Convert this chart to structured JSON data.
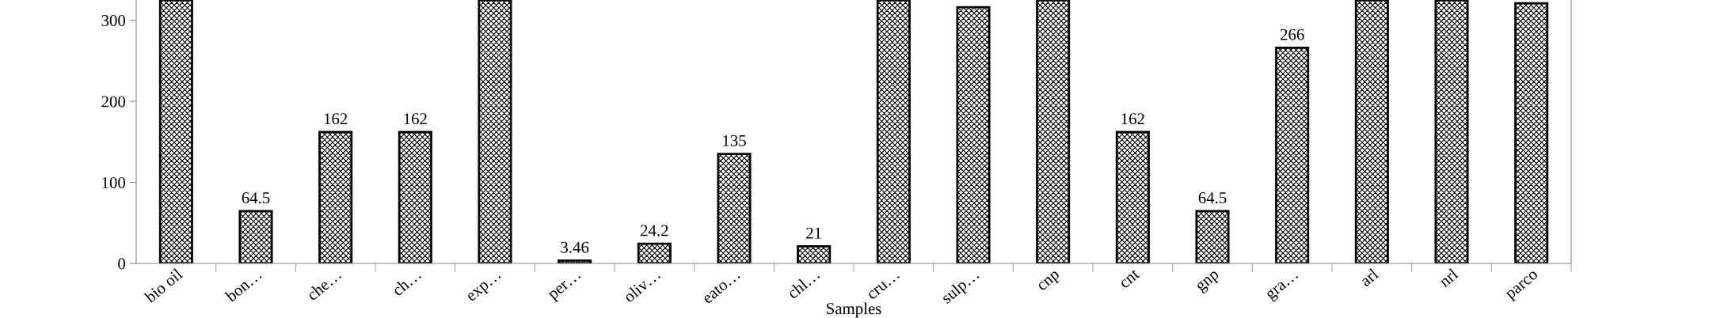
{
  "chart_data": {
    "type": "bar",
    "xlabel": "Samples",
    "categories": [
      "bio oil",
      "bon…",
      "che…",
      "ch…",
      "exp…",
      "per…",
      "oliv…",
      "eato…",
      "chl…",
      "cru…",
      "sulp…",
      "cnp",
      "cnt",
      "gnp",
      "gra…",
      "arl",
      "nrl",
      "parco"
    ],
    "values": [
      325,
      64.5,
      162,
      162,
      325,
      3.46,
      24.2,
      135,
      21,
      325,
      316,
      325,
      162,
      64.5,
      266,
      325,
      325,
      321
    ],
    "value_labels": [
      null,
      "64.5",
      "162",
      "162",
      null,
      "3.46",
      "24.2",
      "135",
      "21",
      null,
      null,
      null,
      "162",
      "64.5",
      "266",
      null,
      null,
      null
    ],
    "color": "#000000",
    "ylim": [
      0,
      325
    ],
    "yticks": [
      0,
      100,
      200,
      300
    ],
    "grid": false
  }
}
